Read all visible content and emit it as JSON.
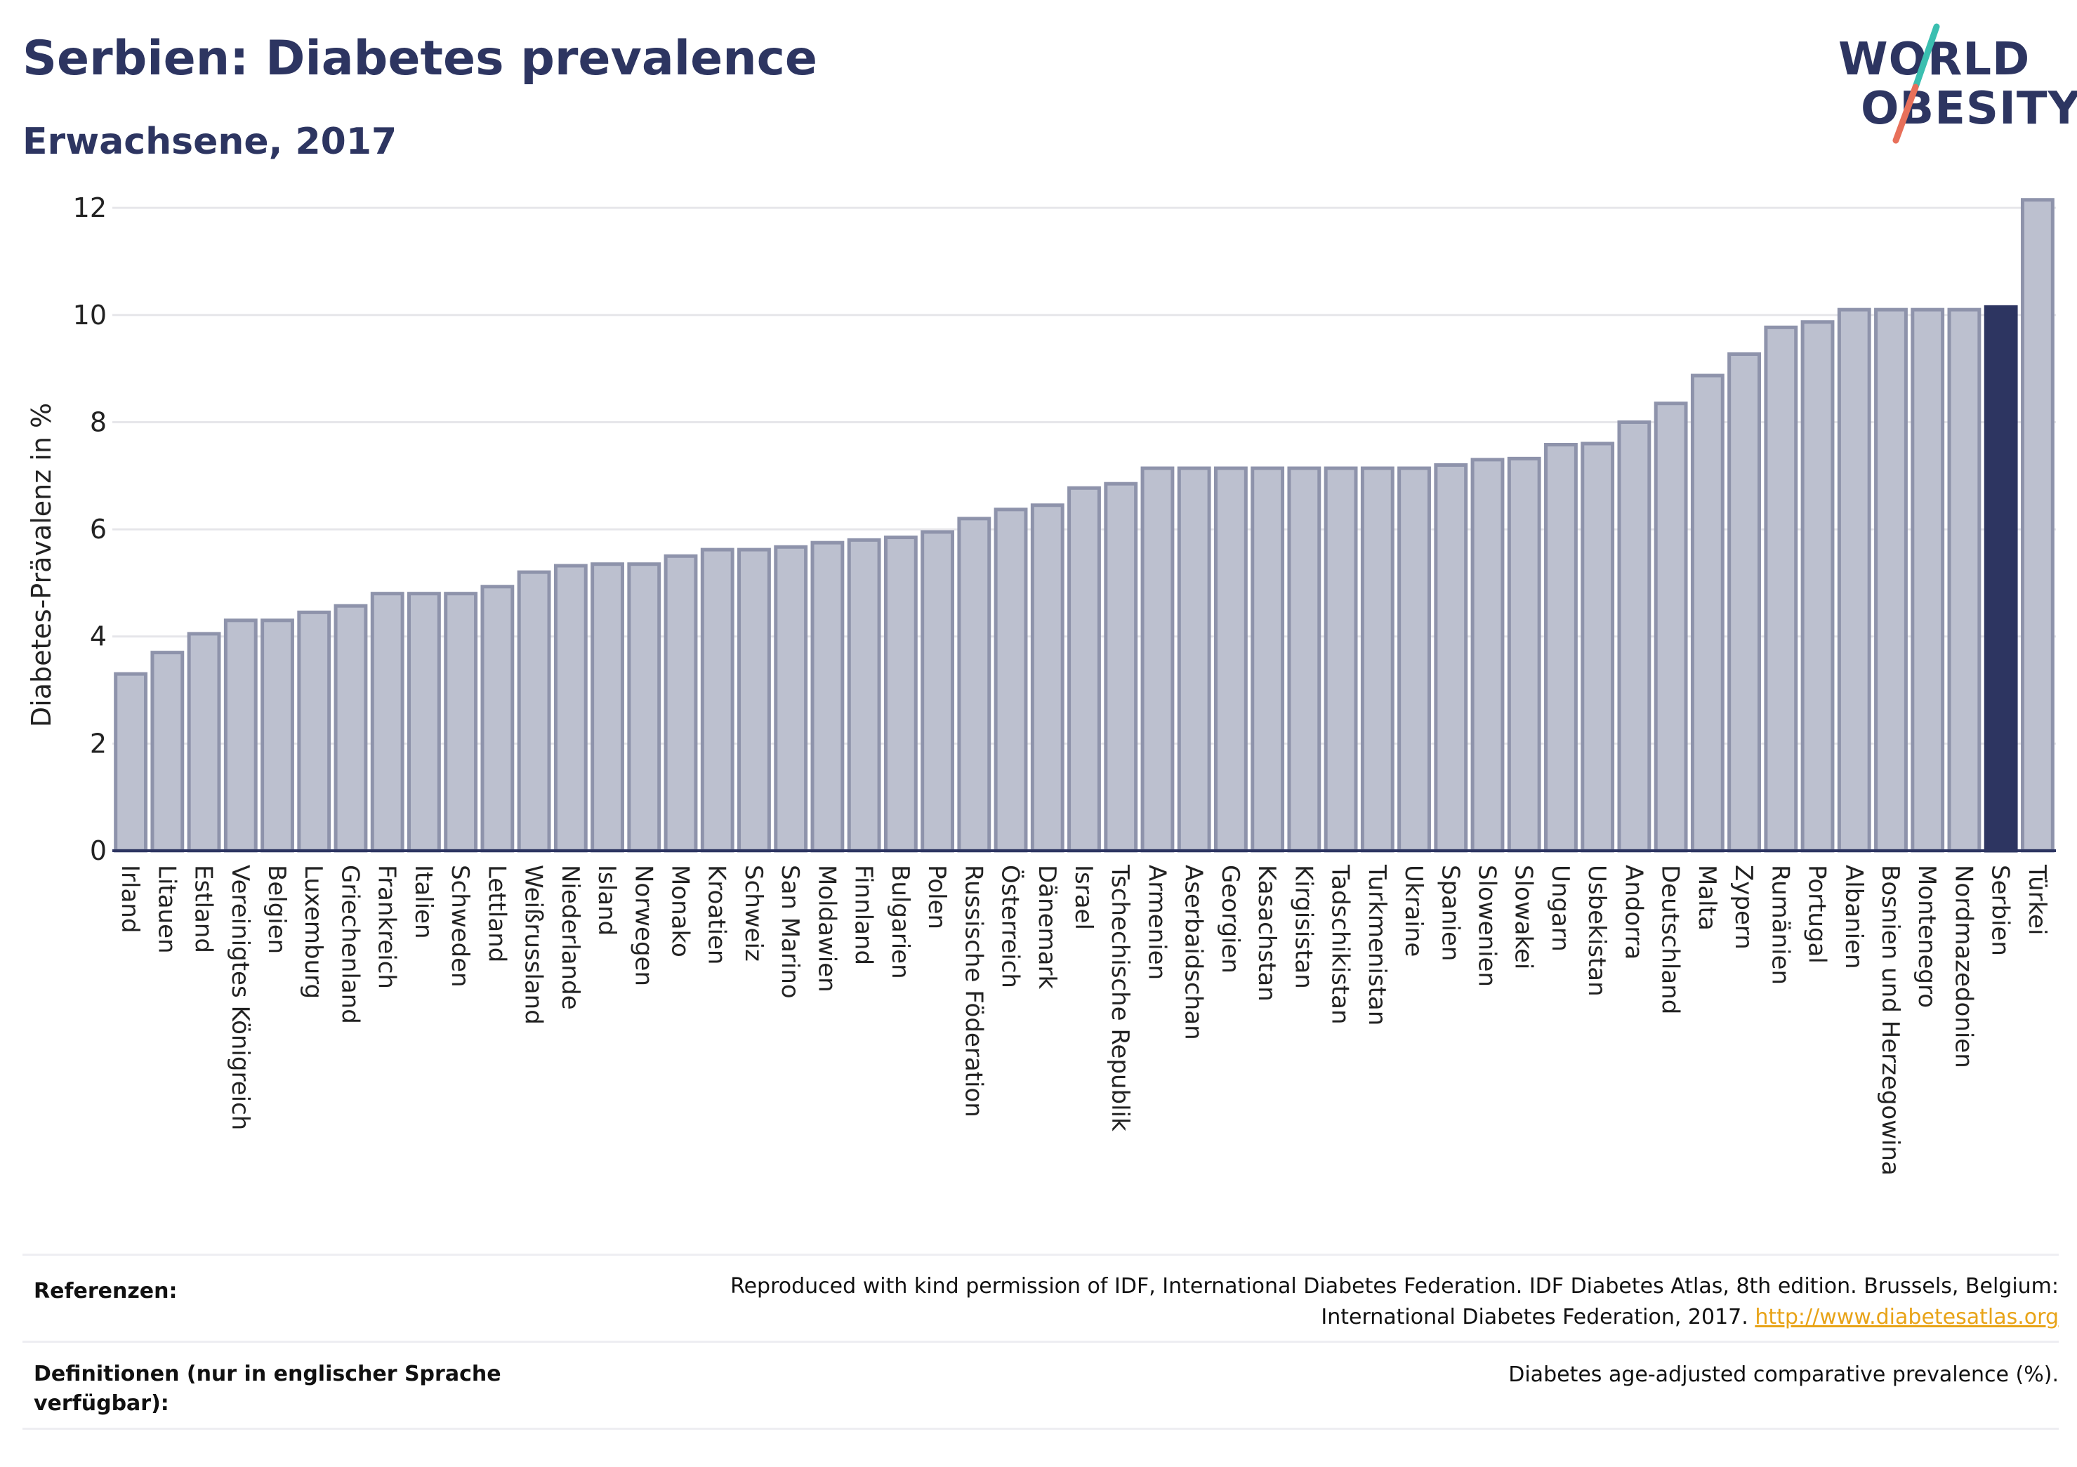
{
  "header": {
    "title": "Serbien: Diabetes prevalence",
    "subtitle": "Erwachsene, 2017"
  },
  "logo": {
    "line1": "WORLD",
    "line2": "OBESITY"
  },
  "colors": {
    "bar_default": "#bcc0cf",
    "bar_default_border": "#8e93ab",
    "bar_highlight": "#2d3561",
    "axis": "#2d3561",
    "grid": "#e6e6ea",
    "logo_slash_top": "#3bbfb0",
    "logo_slash_bottom": "#e8705a"
  },
  "chart_data": {
    "type": "bar",
    "title": "",
    "xlabel": "",
    "ylabel": "Diabetes-Prävalenz in %",
    "ylim": [
      0,
      12.5
    ],
    "yticks": [
      0,
      2,
      4,
      6,
      8,
      10,
      12
    ],
    "grid": true,
    "highlight": "Serbien",
    "categories": [
      "Irland",
      "Litauen",
      "Estland",
      "Vereinigtes Königreich",
      "Belgien",
      "Luxemburg",
      "Griechenland",
      "Frankreich",
      "Italien",
      "Schweden",
      "Lettland",
      "Weißrussland",
      "Niederlande",
      "Island",
      "Norwegen",
      "Monako",
      "Kroatien",
      "Schweiz",
      "San Marino",
      "Moldawien",
      "Finnland",
      "Bulgarien",
      "Polen",
      "Russische Föderation",
      "Österreich",
      "Dänemark",
      "Israel",
      "Tschechische Republik",
      "Armenien",
      "Aserbaidschan",
      "Georgien",
      "Kasachstan",
      "Kirgisistan",
      "Tadschikistan",
      "Turkmenistan",
      "Ukraine",
      "Spanien",
      "Slowenien",
      "Slowakei",
      "Ungarn",
      "Usbekistan",
      "Andorra",
      "Deutschland",
      "Malta",
      "Zypern",
      "Rumänien",
      "Portugal",
      "Albanien",
      "Bosnien und Herzegowina",
      "Montenegro",
      "Nordmazedonien",
      "Serbien",
      "Türkei"
    ],
    "values": [
      3.3,
      3.7,
      4.05,
      4.3,
      4.3,
      4.45,
      4.57,
      4.8,
      4.8,
      4.8,
      4.93,
      5.2,
      5.32,
      5.35,
      5.35,
      5.5,
      5.62,
      5.62,
      5.67,
      5.75,
      5.8,
      5.85,
      5.95,
      6.2,
      6.37,
      6.45,
      6.77,
      6.85,
      7.14,
      7.14,
      7.14,
      7.14,
      7.14,
      7.14,
      7.14,
      7.14,
      7.2,
      7.3,
      7.32,
      7.58,
      7.6,
      8.0,
      8.35,
      8.87,
      9.27,
      9.77,
      9.87,
      10.1,
      10.1,
      10.1,
      10.1,
      10.15,
      12.15
    ]
  },
  "footer": {
    "references_label": "Referenzen:",
    "references_text_line1": "Reproduced with kind permission of IDF, International Diabetes Federation. IDF Diabetes Atlas, 8th edition. Brussels, Belgium:",
    "references_text_line2": "International Diabetes Federation, 2017.",
    "references_link": "http://www.diabetesatlas.org",
    "definitions_label": "Definitionen (nur in englischer Sprache verfügbar):",
    "definitions_text": "Diabetes age-adjusted comparative prevalence (%)."
  }
}
